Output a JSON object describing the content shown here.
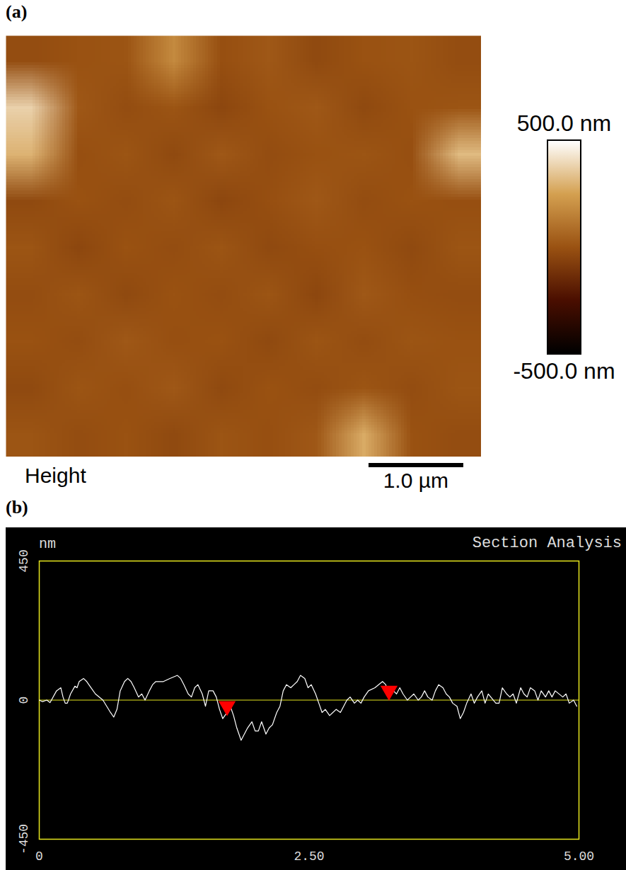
{
  "chart_data": [
    {
      "type": "heatmap",
      "panel": "(a)",
      "caption": "Height",
      "xlim": [
        0,
        5
      ],
      "scale_bar": {
        "value": 1.0,
        "label": "1.0 µm"
      },
      "colors": [
        "#000000",
        "#4a0e00",
        "#9a5212",
        "#d4a050",
        "#ffffff"
      ],
      "colorbar": {
        "range": [
          -500,
          500
        ],
        "ticks": [
          {
            "value": 500,
            "label": "500.0 nm"
          },
          {
            "value": -500,
            "label": "-500.0 nm"
          }
        ]
      },
      "cells": [
        [
          -20,
          0,
          10,
          180,
          -10,
          20,
          -30,
          0,
          10,
          -20
        ],
        [
          380,
          20,
          -20,
          10,
          -40,
          0,
          20,
          -30,
          0,
          10
        ],
        [
          300,
          -10,
          10,
          -30,
          20,
          -20,
          0,
          10,
          -10,
          320
        ],
        [
          -30,
          0,
          -20,
          10,
          -40,
          -10,
          20,
          -20,
          0,
          -10
        ],
        [
          10,
          -40,
          0,
          -20,
          10,
          -30,
          -10,
          0,
          -30,
          10
        ],
        [
          -20,
          10,
          -30,
          0,
          -20,
          10,
          -40,
          20,
          -10,
          -20
        ],
        [
          0,
          -20,
          20,
          -10,
          0,
          -30,
          10,
          -20,
          10,
          0
        ],
        [
          -30,
          10,
          -10,
          20,
          -30,
          0,
          -20,
          10,
          -20,
          10
        ],
        [
          10,
          -20,
          0,
          -30,
          10,
          -10,
          20,
          280,
          0,
          -20
        ]
      ]
    },
    {
      "type": "line",
      "panel": "(b)",
      "title": "Section Analysis",
      "ylabel": "nm",
      "xlim": [
        0,
        5
      ],
      "ylim": [
        -450,
        450
      ],
      "xticks": [
        0,
        {
          "value": 2.5,
          "label": "2.50"
        },
        {
          "value": 5,
          "label": "5.00"
        }
      ],
      "yticks": [
        -450,
        0,
        450
      ],
      "series": [
        {
          "type": "line",
          "color": "#ffffff",
          "x": [
            0,
            0.03,
            0.07,
            0.1,
            0.16,
            0.2,
            0.22,
            0.24,
            0.26,
            0.29,
            0.33,
            0.35,
            0.37,
            0.41,
            0.44,
            0.48,
            0.52,
            0.59,
            0.66,
            0.69,
            0.72,
            0.75,
            0.79,
            0.82,
            0.85,
            0.88,
            0.92,
            0.95,
            0.98,
            1.02,
            1.05,
            1.08,
            1.15,
            1.21,
            1.28,
            1.31,
            1.34,
            1.38,
            1.41,
            1.44,
            1.47,
            1.51,
            1.54,
            1.57,
            1.61,
            1.64,
            1.67,
            1.7,
            1.74,
            1.77,
            1.8,
            1.83,
            1.87,
            1.9,
            1.93,
            1.97,
            2.0,
            2.03,
            2.06,
            2.1,
            2.13,
            2.16,
            2.2,
            2.23,
            2.26,
            2.29,
            2.33,
            2.36,
            2.39,
            2.42,
            2.46,
            2.49,
            2.52,
            2.56,
            2.59,
            2.62,
            2.65,
            2.69,
            2.72,
            2.75,
            2.79,
            2.82,
            2.85,
            2.88,
            2.92,
            2.95,
            2.98,
            3.01,
            3.05,
            3.11,
            3.18,
            3.21,
            3.24,
            3.28,
            3.31,
            3.34,
            3.37,
            3.41,
            3.44,
            3.47,
            3.51,
            3.54,
            3.57,
            3.6,
            3.64,
            3.67,
            3.7,
            3.74,
            3.77,
            3.8,
            3.83,
            3.87,
            3.9,
            3.93,
            3.96,
            4.0,
            4.03,
            4.06,
            4.1,
            4.13,
            4.16,
            4.23,
            4.26,
            4.29,
            4.33,
            4.36,
            4.39,
            4.42,
            4.46,
            4.49,
            4.52,
            4.55,
            4.59,
            4.62,
            4.65,
            4.69,
            4.72,
            4.75,
            4.78,
            4.85,
            4.88,
            4.91,
            4.95,
            4.98
          ],
          "values": [
            0,
            -5,
            0,
            -8,
            30,
            40,
            10,
            -10,
            -10,
            20,
            45,
            40,
            60,
            70,
            60,
            40,
            20,
            0,
            -40,
            -55,
            -30,
            30,
            60,
            70,
            60,
            40,
            10,
            20,
            0,
            30,
            50,
            60,
            60,
            70,
            80,
            70,
            50,
            20,
            10,
            40,
            50,
            20,
            -20,
            30,
            30,
            10,
            -30,
            -60,
            -40,
            -20,
            -50,
            -90,
            -130,
            -110,
            -90,
            -70,
            -100,
            -100,
            -70,
            -110,
            -90,
            -80,
            -40,
            -20,
            30,
            50,
            40,
            50,
            60,
            80,
            70,
            40,
            50,
            20,
            -10,
            -40,
            -30,
            -50,
            -40,
            -30,
            -40,
            -20,
            0,
            10,
            -10,
            0,
            -10,
            10,
            30,
            40,
            60,
            50,
            10,
            30,
            20,
            40,
            20,
            0,
            10,
            20,
            0,
            10,
            30,
            10,
            0,
            30,
            50,
            40,
            20,
            10,
            -10,
            -20,
            -60,
            -40,
            -10,
            20,
            -10,
            10,
            30,
            -10,
            20,
            -10,
            -10,
            40,
            20,
            10,
            20,
            -10,
            40,
            20,
            10,
            40,
            30,
            0,
            30,
            10,
            30,
            10,
            30,
            10,
            20,
            -10,
            0,
            -20
          ]
        },
        {
          "type": "scatter",
          "marker": "triangle-down",
          "color": "#ff0000",
          "x": [
            1.74,
            3.24
          ],
          "values": [
            -40,
            10
          ]
        }
      ]
    }
  ]
}
